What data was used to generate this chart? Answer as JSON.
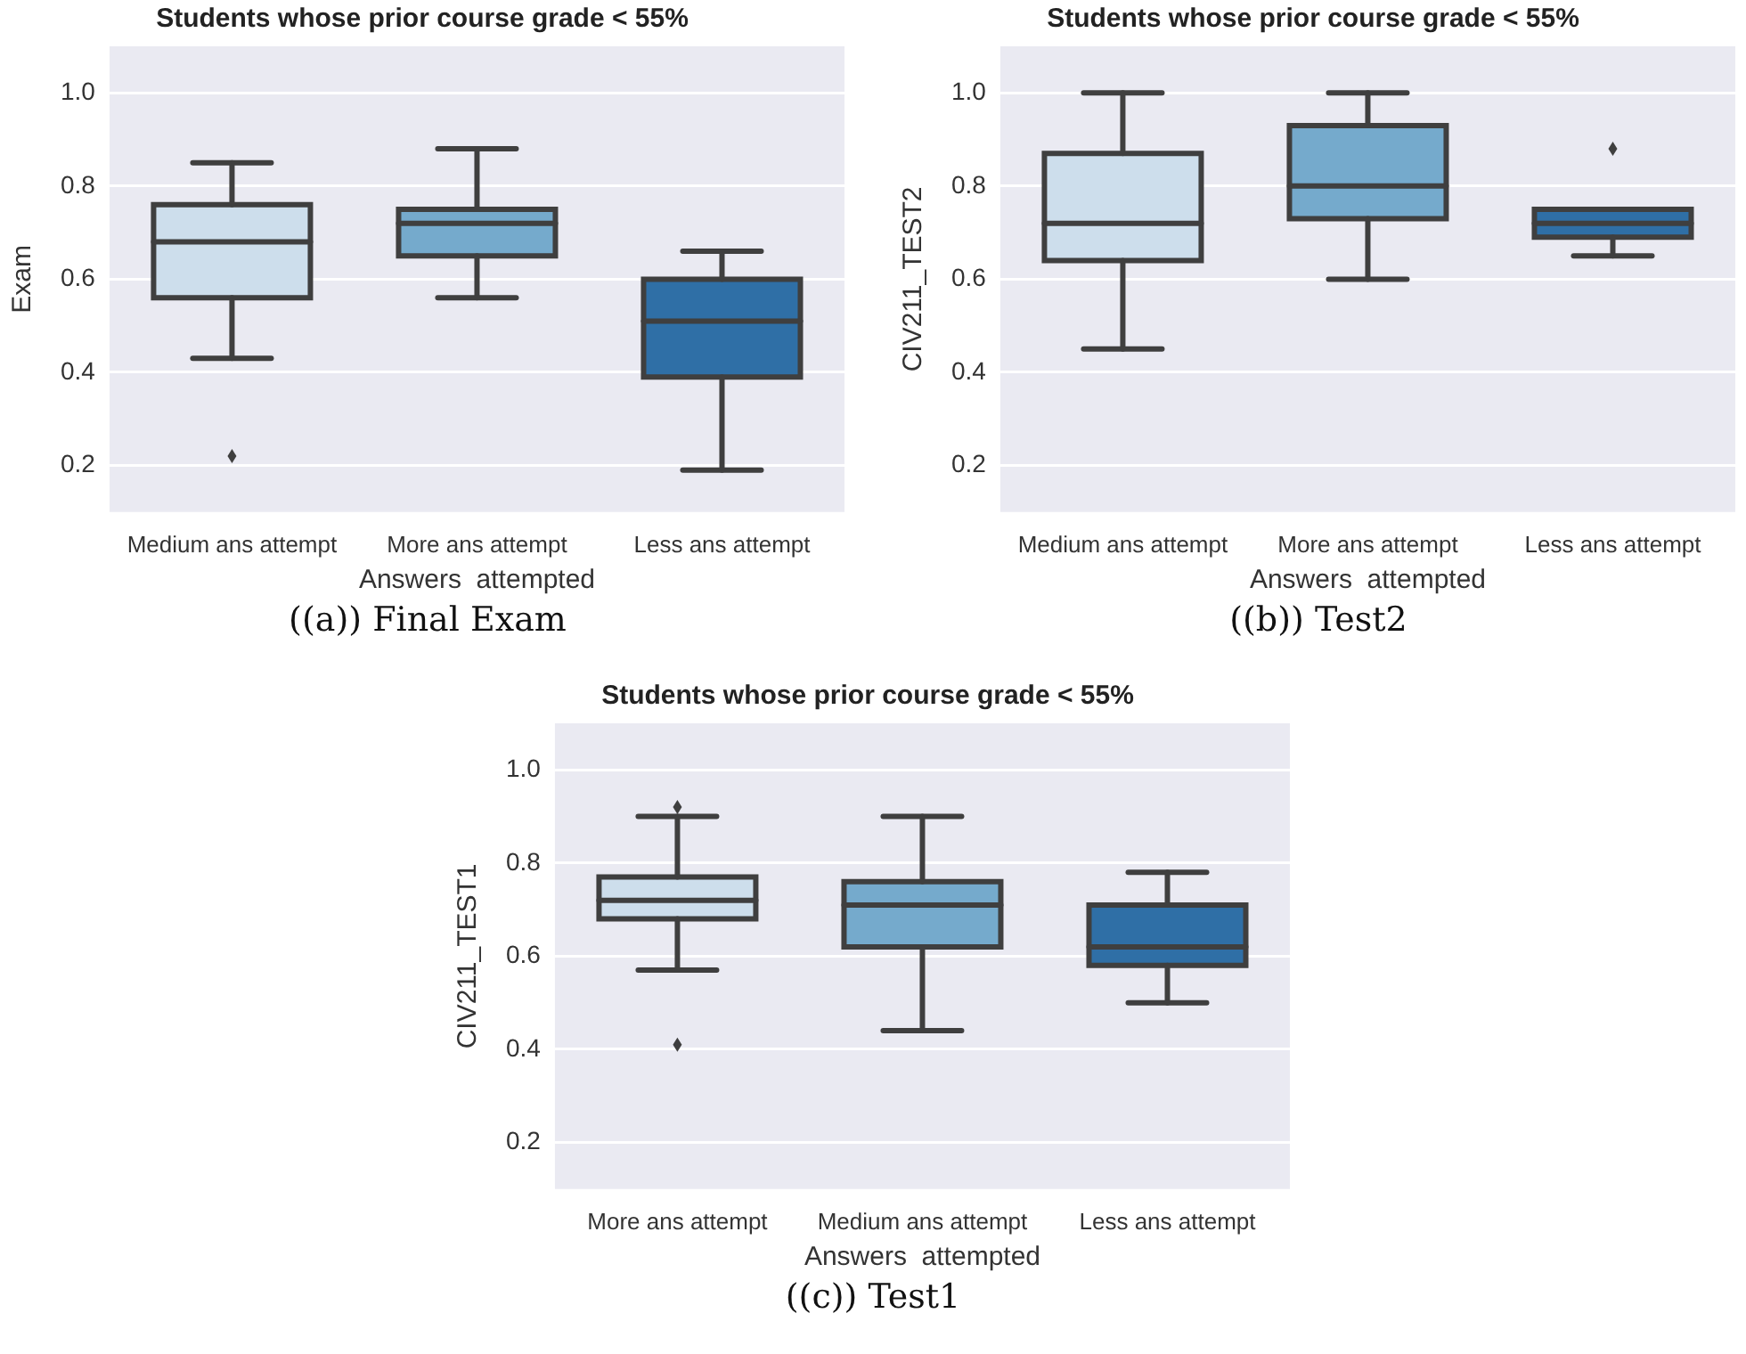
{
  "chart_data": [
    {
      "type": "box",
      "title": "Students whose prior course grade < 55%",
      "xlabel": "Answers  attempted",
      "ylabel": "Exam",
      "categories": [
        "Medium ans attempt",
        "More ans attempt",
        "Less ans attempt"
      ],
      "colors": [
        "#cddeec",
        "#75aacc",
        "#2f6fa6"
      ],
      "boxes": [
        {
          "low": 0.43,
          "q1": 0.56,
          "median": 0.68,
          "q3": 0.76,
          "high": 0.85,
          "outliers": [
            0.22
          ]
        },
        {
          "low": 0.56,
          "q1": 0.65,
          "median": 0.72,
          "q3": 0.75,
          "high": 0.88
        },
        {
          "low": 0.19,
          "q1": 0.39,
          "median": 0.51,
          "q3": 0.6,
          "high": 0.66
        }
      ],
      "ylim": [
        0.1,
        1.1
      ],
      "yticks": [
        {
          "value": 0.2,
          "label": "0.2"
        },
        {
          "value": 0.4,
          "label": "0.4"
        },
        {
          "value": 0.6,
          "label": "0.6"
        },
        {
          "value": 0.8,
          "label": "0.8"
        },
        {
          "value": 1.0,
          "label": "1.0"
        }
      ],
      "grid": "y",
      "annotations": [
        "((a)) Final Exam"
      ]
    },
    {
      "type": "box",
      "title": "Students whose prior course grade < 55%",
      "xlabel": "Answers  attempted",
      "ylabel": "CIV211_TEST2",
      "categories": [
        "Medium ans attempt",
        "More ans attempt",
        "Less ans attempt"
      ],
      "colors": [
        "#cddeec",
        "#75aacc",
        "#2f6fa6"
      ],
      "boxes": [
        {
          "low": 0.45,
          "q1": 0.64,
          "median": 0.72,
          "q3": 0.87,
          "high": 1.0
        },
        {
          "low": 0.6,
          "q1": 0.73,
          "median": 0.8,
          "q3": 0.93,
          "high": 1.0
        },
        {
          "low": 0.65,
          "q1": 0.69,
          "median": 0.72,
          "q3": 0.75,
          "high": 0.75,
          "outliers": [
            0.88
          ]
        }
      ],
      "ylim": [
        0.1,
        1.1
      ],
      "yticks": [
        {
          "value": 0.2,
          "label": "0.2"
        },
        {
          "value": 0.4,
          "label": "0.4"
        },
        {
          "value": 0.6,
          "label": "0.6"
        },
        {
          "value": 0.8,
          "label": "0.8"
        },
        {
          "value": 1.0,
          "label": "1.0"
        }
      ],
      "grid": "y",
      "annotations": [
        "((b)) Test2"
      ]
    },
    {
      "type": "box",
      "title": "Students whose prior course grade < 55%",
      "xlabel": "Answers  attempted",
      "ylabel": "CIV211_TEST1",
      "categories": [
        "More ans attempt",
        "Medium ans attempt",
        "Less ans attempt"
      ],
      "colors": [
        "#cddeec",
        "#75aacc",
        "#2f6fa6"
      ],
      "boxes": [
        {
          "low": 0.57,
          "q1": 0.68,
          "median": 0.72,
          "q3": 0.77,
          "high": 0.9,
          "outliers": [
            0.92,
            0.41
          ]
        },
        {
          "low": 0.44,
          "q1": 0.62,
          "median": 0.71,
          "q3": 0.76,
          "high": 0.9
        },
        {
          "low": 0.5,
          "q1": 0.58,
          "median": 0.62,
          "q3": 0.71,
          "high": 0.78
        }
      ],
      "ylim": [
        0.1,
        1.1
      ],
      "yticks": [
        {
          "value": 0.2,
          "label": "0.2"
        },
        {
          "value": 0.4,
          "label": "0.4"
        },
        {
          "value": 0.6,
          "label": "0.6"
        },
        {
          "value": 0.8,
          "label": "0.8"
        },
        {
          "value": 1.0,
          "label": "1.0"
        }
      ],
      "grid": "y",
      "annotations": [
        "((c)) Test1"
      ]
    }
  ]
}
